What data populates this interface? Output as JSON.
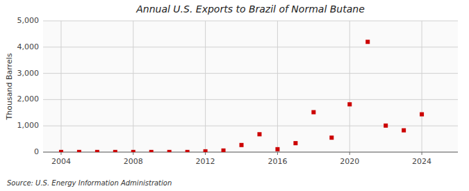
{
  "chart_data": {
    "type": "scatter",
    "title": "Annual U.S. Exports to Brazil of Normal Butane",
    "ylabel": "Thousand Barrels",
    "annotation": "Source: U.S. Energy Information Administration",
    "x": [
      2004,
      2005,
      2006,
      2007,
      2008,
      2009,
      2010,
      2011,
      2012,
      2013,
      2014,
      2015,
      2016,
      2017,
      2018,
      2019,
      2020,
      2021,
      2022,
      2023,
      2024
    ],
    "values": [
      5,
      5,
      5,
      5,
      5,
      5,
      5,
      5,
      30,
      60,
      270,
      680,
      110,
      340,
      1520,
      550,
      1820,
      4200,
      1010,
      830,
      1440
    ],
    "color": "#cc0000",
    "marker": "square",
    "xlim": [
      2003,
      2026
    ],
    "ylim": [
      0,
      5000
    ],
    "xticks": [
      2004,
      2008,
      2012,
      2016,
      2020,
      2024
    ],
    "yticks": [
      0,
      {
        "value": 1000,
        "label": "1,000"
      },
      {
        "value": 2000,
        "label": "2,000"
      },
      {
        "value": 3000,
        "label": "3,000"
      },
      {
        "value": 4000,
        "label": "4,000"
      },
      {
        "value": 5000,
        "label": "5,000"
      }
    ],
    "grid": true
  }
}
